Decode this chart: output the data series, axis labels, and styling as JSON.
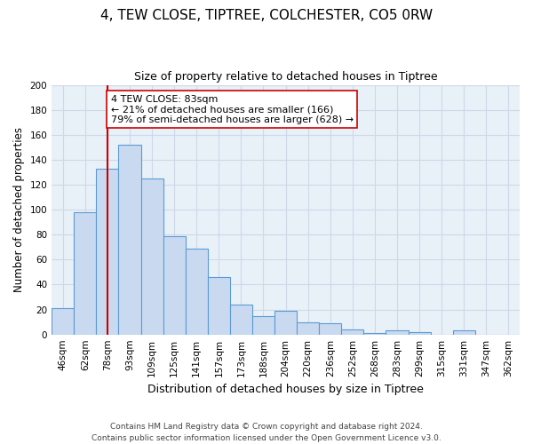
{
  "title": "4, TEW CLOSE, TIPTREE, COLCHESTER, CO5 0RW",
  "subtitle": "Size of property relative to detached houses in Tiptree",
  "xlabel": "Distribution of detached houses by size in Tiptree",
  "ylabel": "Number of detached properties",
  "bar_labels": [
    "46sqm",
    "62sqm",
    "78sqm",
    "93sqm",
    "109sqm",
    "125sqm",
    "141sqm",
    "157sqm",
    "173sqm",
    "188sqm",
    "204sqm",
    "220sqm",
    "236sqm",
    "252sqm",
    "268sqm",
    "283sqm",
    "299sqm",
    "315sqm",
    "331sqm",
    "347sqm",
    "362sqm"
  ],
  "bar_values": [
    21,
    98,
    133,
    152,
    125,
    79,
    69,
    46,
    24,
    15,
    19,
    10,
    9,
    4,
    1,
    3,
    2,
    0,
    3,
    0,
    0
  ],
  "bar_color": "#c9daf0",
  "bar_edge_color": "#5b9bd5",
  "ylim": [
    0,
    200
  ],
  "yticks": [
    0,
    20,
    40,
    60,
    80,
    100,
    120,
    140,
    160,
    180,
    200
  ],
  "vline_x_index": 2,
  "vline_color": "#cc0000",
  "annotation_text": "4 TEW CLOSE: 83sqm\n← 21% of detached houses are smaller (166)\n79% of semi-detached houses are larger (628) →",
  "annotation_box_color": "#ffffff",
  "annotation_box_edge": "#cc0000",
  "footer_line1": "Contains HM Land Registry data © Crown copyright and database right 2024.",
  "footer_line2": "Contains public sector information licensed under the Open Government Licence v3.0.",
  "bg_color": "#ffffff",
  "plot_bg_color": "#e8f0f8",
  "grid_color": "#d0d8e8",
  "title_fontsize": 11,
  "subtitle_fontsize": 9,
  "tick_fontsize": 7.5,
  "ylabel_fontsize": 8.5,
  "xlabel_fontsize": 9
}
